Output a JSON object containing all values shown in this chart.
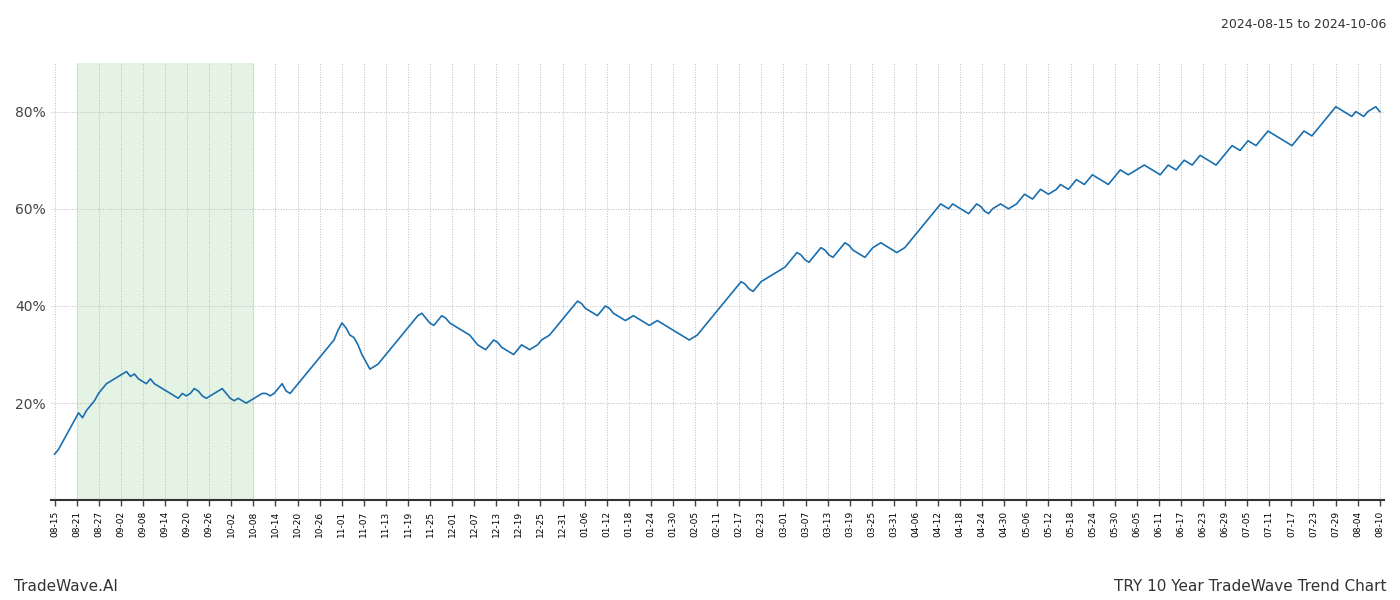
{
  "title_top_right": "2024-08-15 to 2024-10-06",
  "title_bottom_left": "TradeWave.AI",
  "title_bottom_right": "TRY 10 Year TradeWave Trend Chart",
  "line_color": "#1a6faf",
  "line_width": 1.2,
  "shaded_region_color": "#d4ecd4",
  "shaded_region_alpha": 0.6,
  "background_color": "#ffffff",
  "grid_color": "#bbbbbb",
  "grid_style": "dotted",
  "yticks": [
    20,
    40,
    60,
    80
  ],
  "ylim": [
    0,
    90
  ],
  "x_tick_labels": [
    "08-15",
    "08-21",
    "08-27",
    "09-02",
    "09-08",
    "09-14",
    "09-20",
    "09-26",
    "10-02",
    "10-08",
    "10-14",
    "10-20",
    "10-26",
    "11-01",
    "11-07",
    "11-13",
    "11-19",
    "11-25",
    "12-01",
    "12-07",
    "12-13",
    "12-19",
    "12-25",
    "12-31",
    "01-06",
    "01-12",
    "01-18",
    "01-24",
    "01-30",
    "02-05",
    "02-11",
    "02-17",
    "02-23",
    "03-01",
    "03-07",
    "03-13",
    "03-19",
    "03-25",
    "03-31",
    "04-06",
    "04-12",
    "04-18",
    "04-24",
    "04-30",
    "05-06",
    "05-12",
    "05-18",
    "05-24",
    "05-30",
    "06-05",
    "06-11",
    "06-17",
    "06-23",
    "06-29",
    "07-05",
    "07-11",
    "07-17",
    "07-23",
    "07-29",
    "08-04",
    "08-10"
  ],
  "shaded_start_label": "08-21",
  "shaded_end_label": "10-08",
  "y_values": [
    9.5,
    10.5,
    12,
    13.5,
    15,
    16.5,
    18,
    17,
    18.5,
    19.5,
    20.5,
    22,
    23,
    24,
    24.5,
    25,
    25.5,
    26,
    26.5,
    25.5,
    26,
    25,
    24.5,
    24,
    25,
    24,
    23.5,
    23,
    22.5,
    22,
    21.5,
    21,
    22,
    21.5,
    22,
    23,
    22.5,
    21.5,
    21,
    21.5,
    22,
    22.5,
    23,
    22,
    21,
    20.5,
    21,
    20.5,
    20,
    20.5,
    21,
    21.5,
    22,
    22,
    21.5,
    22,
    23,
    24,
    22.5,
    22,
    23,
    24,
    25,
    26,
    27,
    28,
    29,
    30,
    31,
    32,
    33,
    35,
    36.5,
    35.5,
    34,
    33.5,
    32,
    30,
    28.5,
    27,
    27.5,
    28,
    29,
    30,
    31,
    32,
    33,
    34,
    35,
    36,
    37,
    38,
    38.5,
    37.5,
    36.5,
    36,
    37,
    38,
    37.5,
    36.5,
    36,
    35.5,
    35,
    34.5,
    34,
    33,
    32,
    31.5,
    31,
    32,
    33,
    32.5,
    31.5,
    31,
    30.5,
    30,
    31,
    32,
    31.5,
    31,
    31.5,
    32,
    33,
    33.5,
    34,
    35,
    36,
    37,
    38,
    39,
    40,
    41,
    40.5,
    39.5,
    39,
    38.5,
    38,
    39,
    40,
    39.5,
    38.5,
    38,
    37.5,
    37,
    37.5,
    38,
    37.5,
    37,
    36.5,
    36,
    36.5,
    37,
    36.5,
    36,
    35.5,
    35,
    34.5,
    34,
    33.5,
    33,
    33.5,
    34,
    35,
    36,
    37,
    38,
    39,
    40,
    41,
    42,
    43,
    44,
    45,
    44.5,
    43.5,
    43,
    44,
    45,
    45.5,
    46,
    46.5,
    47,
    47.5,
    48,
    49,
    50,
    51,
    50.5,
    49.5,
    49,
    50,
    51,
    52,
    51.5,
    50.5,
    50,
    51,
    52,
    53,
    52.5,
    51.5,
    51,
    50.5,
    50,
    51,
    52,
    52.5,
    53,
    52.5,
    52,
    51.5,
    51,
    51.5,
    52,
    53,
    54,
    55,
    56,
    57,
    58,
    59,
    60,
    61,
    60.5,
    60,
    61,
    60.5,
    60,
    59.5,
    59,
    60,
    61,
    60.5,
    59.5,
    59,
    60,
    60.5,
    61,
    60.5,
    60,
    60.5,
    61,
    62,
    63,
    62.5,
    62,
    63,
    64,
    63.5,
    63,
    63.5,
    64,
    65,
    64.5,
    64,
    65,
    66,
    65.5,
    65,
    66,
    67,
    66.5,
    66,
    65.5,
    65,
    66,
    67,
    68,
    67.5,
    67,
    67.5,
    68,
    68.5,
    69,
    68.5,
    68,
    67.5,
    67,
    68,
    69,
    68.5,
    68,
    69,
    70,
    69.5,
    69,
    70,
    71,
    70.5,
    70,
    69.5,
    69,
    70,
    71,
    72,
    73,
    72.5,
    72,
    73,
    74,
    73.5,
    73,
    74,
    75,
    76,
    75.5,
    75,
    74.5,
    74,
    73.5,
    73,
    74,
    75,
    76,
    75.5,
    75,
    76,
    77,
    78,
    79,
    80,
    81,
    80.5,
    80,
    79.5,
    79,
    80,
    79.5,
    79,
    80,
    80.5,
    81,
    80
  ]
}
